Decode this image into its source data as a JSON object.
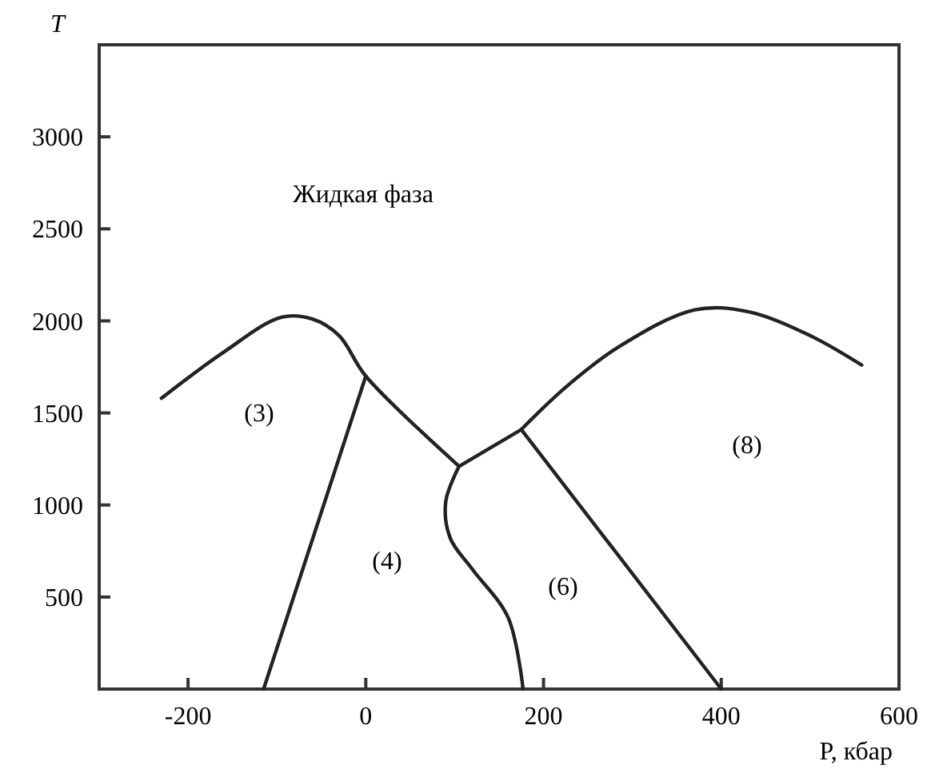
{
  "chart_data": {
    "type": "line",
    "xlabel": "P, кбар",
    "ylabel": "T",
    "xlim": [
      -300,
      600
    ],
    "xticks": [
      -200,
      0,
      200,
      400,
      600
    ],
    "ylim": [
      0,
      3500
    ],
    "yticks": [
      500,
      1000,
      1500,
      2000,
      2500,
      3000
    ],
    "grid": false,
    "series": [
      {
        "color": "#222222",
        "x": [
          -230,
          -160,
          -95,
          -60,
          -30,
          0,
          105
        ],
        "values": [
          1580,
          1830,
          2020,
          2010,
          1920,
          1700,
          1210
        ]
      },
      {
        "color": "#222222",
        "x": [
          0,
          -115
        ],
        "values": [
          1700,
          0
        ]
      },
      {
        "color": "#222222",
        "x": [
          105,
          90,
          95,
          120,
          160,
          177
        ],
        "values": [
          1210,
          1020,
          820,
          650,
          390,
          0
        ]
      },
      {
        "color": "#222222",
        "x": [
          105,
          175
        ],
        "values": [
          1210,
          1410
        ]
      },
      {
        "color": "#222222",
        "x": [
          175,
          400
        ],
        "values": [
          1410,
          0
        ]
      },
      {
        "color": "#222222",
        "x": [
          175,
          225,
          285,
          370,
          430,
          500,
          558
        ],
        "values": [
          1410,
          1640,
          1860,
          2060,
          2050,
          1920,
          1760
        ]
      }
    ],
    "annotations": [
      "Жидкая фаза",
      "(3)",
      "(4)",
      "(6)",
      "(8)"
    ]
  }
}
